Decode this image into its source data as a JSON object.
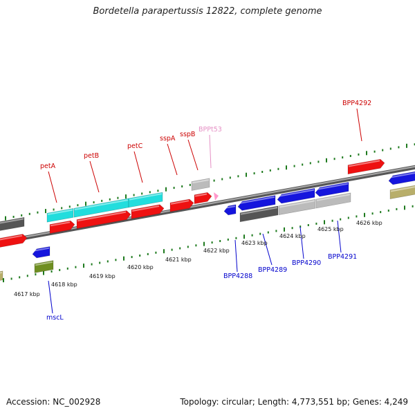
{
  "title": "Bordetella parapertussis 12822, complete genome",
  "footer": {
    "accession": "Accession: NC_002928",
    "summary": "Topology: circular; Length: 4,773,551 bp; Genes: 4,249"
  },
  "colors": {
    "backbone": "#808080",
    "tick": "#1e7a1e",
    "forward_label": "#cc0000",
    "reverse_label": "#0000cc",
    "trna_label": "#e58fc4",
    "cds_red": "#ee1111",
    "cds_blue": "#1515dd",
    "rna_cyan": "#22dddd",
    "gene_dark_gray": "#555555",
    "gene_light_gray": "#bbbbbb",
    "gene_olive": "#6f8f22",
    "gene_khaki": "#b8ae6a",
    "trna_pink": "#ff99cc"
  },
  "scale_labels": [
    "4617 kbp",
    "4618 kbp",
    "4619 kbp",
    "4620 kbp",
    "4621 kbp",
    "4622 kbp",
    "4623 kbp",
    "4624 kbp",
    "4625 kbp",
    "4626 kbp"
  ],
  "gene_labels": [
    {
      "text": "petA",
      "strand": "forward"
    },
    {
      "text": "petB",
      "strand": "forward"
    },
    {
      "text": "petC",
      "strand": "forward"
    },
    {
      "text": "sspA",
      "strand": "forward"
    },
    {
      "text": "sspB",
      "strand": "forward"
    },
    {
      "text": "BPPt53",
      "strand": "trna"
    },
    {
      "text": "BPP4292",
      "strand": "forward"
    },
    {
      "text": "mscL",
      "strand": "reverse"
    },
    {
      "text": "BPP4288",
      "strand": "reverse"
    },
    {
      "text": "BPP4289",
      "strand": "reverse"
    },
    {
      "text": "BPP4290",
      "strand": "reverse"
    },
    {
      "text": "BPP4291",
      "strand": "reverse"
    }
  ]
}
